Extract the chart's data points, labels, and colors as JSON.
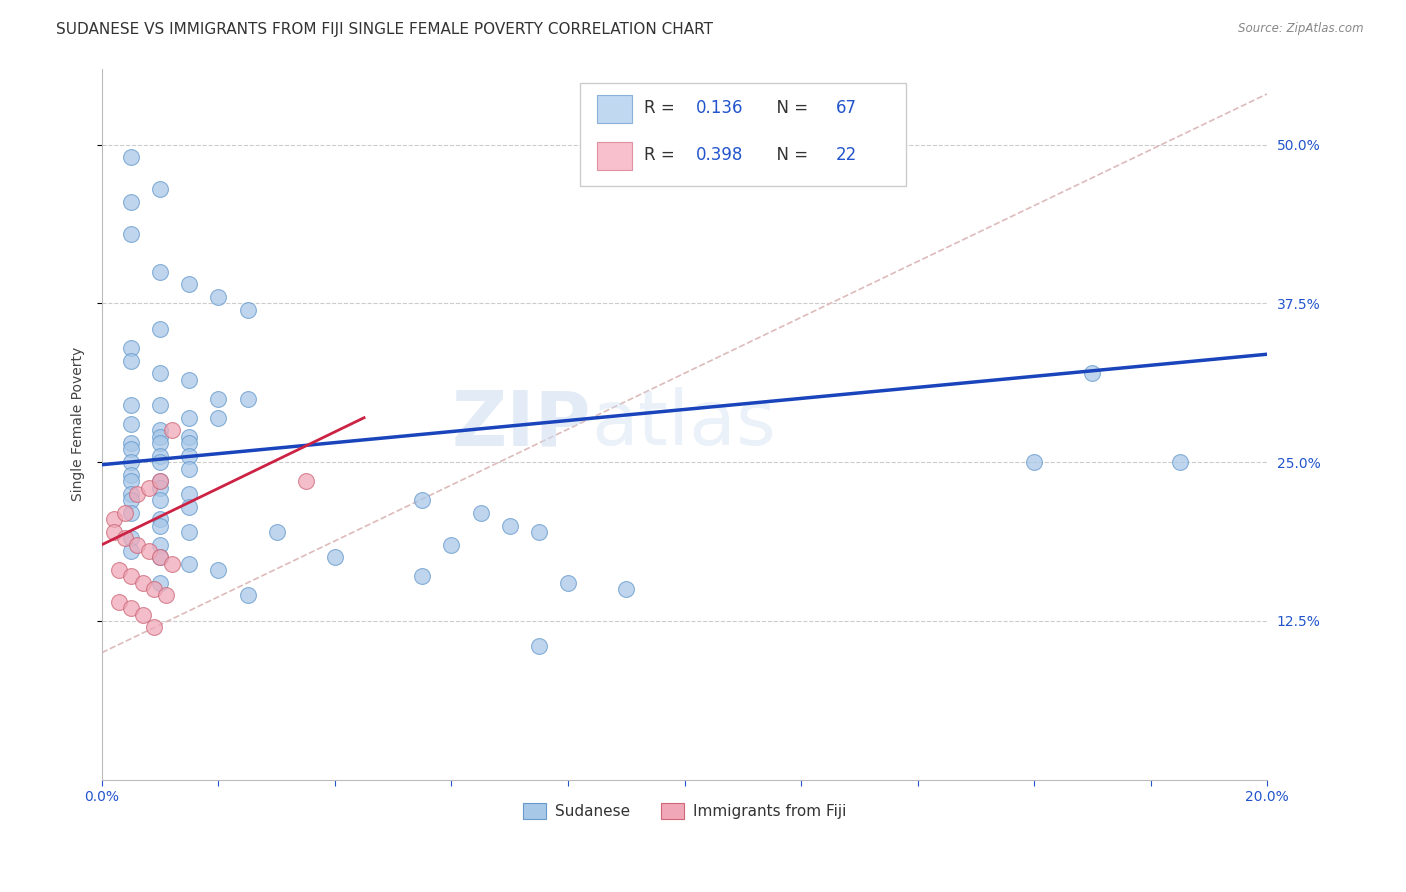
{
  "title": "SUDANESE VS IMMIGRANTS FROM FIJI SINGLE FEMALE POVERTY CORRELATION CHART",
  "source": "Source: ZipAtlas.com",
  "ylabel": "Single Female Poverty",
  "xlim": [
    0.0,
    0.2
  ],
  "ylim": [
    0.0,
    0.56
  ],
  "ytick_positions": [
    0.125,
    0.25,
    0.375,
    0.5
  ],
  "ytick_labels": [
    "12.5%",
    "25.0%",
    "37.5%",
    "50.0%"
  ],
  "R_blue": 0.136,
  "N_blue": 67,
  "R_pink": 0.398,
  "N_pink": 22,
  "blue_color": "#a8c8e8",
  "blue_edge": "#6699cc",
  "pink_color": "#f0a8b8",
  "pink_edge": "#cc6677",
  "blue_trend_color": "#1a44bb",
  "pink_trend_color": "#cc2244",
  "ref_line_color": "#ddbbbb",
  "sudanese_x": [
    0.005,
    0.01,
    0.005,
    0.005,
    0.01,
    0.015,
    0.02,
    0.025,
    0.01,
    0.005,
    0.005,
    0.01,
    0.015,
    0.02,
    0.005,
    0.01,
    0.015,
    0.02,
    0.005,
    0.01,
    0.015,
    0.01,
    0.005,
    0.01,
    0.015,
    0.005,
    0.01,
    0.015,
    0.005,
    0.01,
    0.015,
    0.005,
    0.01,
    0.005,
    0.01,
    0.015,
    0.005,
    0.01,
    0.005,
    0.015,
    0.005,
    0.01,
    0.01,
    0.015,
    0.005,
    0.01,
    0.005,
    0.01,
    0.015,
    0.02,
    0.01,
    0.025,
    0.065,
    0.055,
    0.075,
    0.07,
    0.055,
    0.03,
    0.04,
    0.16,
    0.185,
    0.06,
    0.08,
    0.09,
    0.17,
    0.075,
    0.025
  ],
  "sudanese_y": [
    0.49,
    0.465,
    0.455,
    0.43,
    0.4,
    0.39,
    0.38,
    0.37,
    0.355,
    0.34,
    0.33,
    0.32,
    0.315,
    0.3,
    0.295,
    0.295,
    0.285,
    0.285,
    0.28,
    0.275,
    0.27,
    0.27,
    0.265,
    0.265,
    0.265,
    0.26,
    0.255,
    0.255,
    0.25,
    0.25,
    0.245,
    0.24,
    0.235,
    0.235,
    0.23,
    0.225,
    0.225,
    0.22,
    0.22,
    0.215,
    0.21,
    0.205,
    0.2,
    0.195,
    0.19,
    0.185,
    0.18,
    0.175,
    0.17,
    0.165,
    0.155,
    0.145,
    0.21,
    0.22,
    0.195,
    0.2,
    0.16,
    0.195,
    0.175,
    0.25,
    0.25,
    0.185,
    0.155,
    0.15,
    0.32,
    0.105,
    0.3
  ],
  "fiji_x": [
    0.002,
    0.004,
    0.006,
    0.008,
    0.01,
    0.012,
    0.002,
    0.004,
    0.006,
    0.008,
    0.01,
    0.012,
    0.003,
    0.005,
    0.007,
    0.009,
    0.011,
    0.035,
    0.003,
    0.005,
    0.007,
    0.009
  ],
  "fiji_y": [
    0.205,
    0.21,
    0.225,
    0.23,
    0.235,
    0.275,
    0.195,
    0.19,
    0.185,
    0.18,
    0.175,
    0.17,
    0.165,
    0.16,
    0.155,
    0.15,
    0.145,
    0.235,
    0.14,
    0.135,
    0.13,
    0.12
  ],
  "blue_trend_x": [
    0.0,
    0.2
  ],
  "blue_trend_y": [
    0.248,
    0.335
  ],
  "pink_trend_x": [
    0.0,
    0.045
  ],
  "pink_trend_y": [
    0.185,
    0.285
  ],
  "diag_line_x": [
    0.0,
    0.2
  ],
  "diag_line_y": [
    0.1,
    0.54
  ],
  "watermark": "ZIPatlas",
  "background_color": "#ffffff",
  "grid_color": "#cccccc",
  "title_fontsize": 11,
  "axis_label_fontsize": 10,
  "tick_label_fontsize": 10
}
